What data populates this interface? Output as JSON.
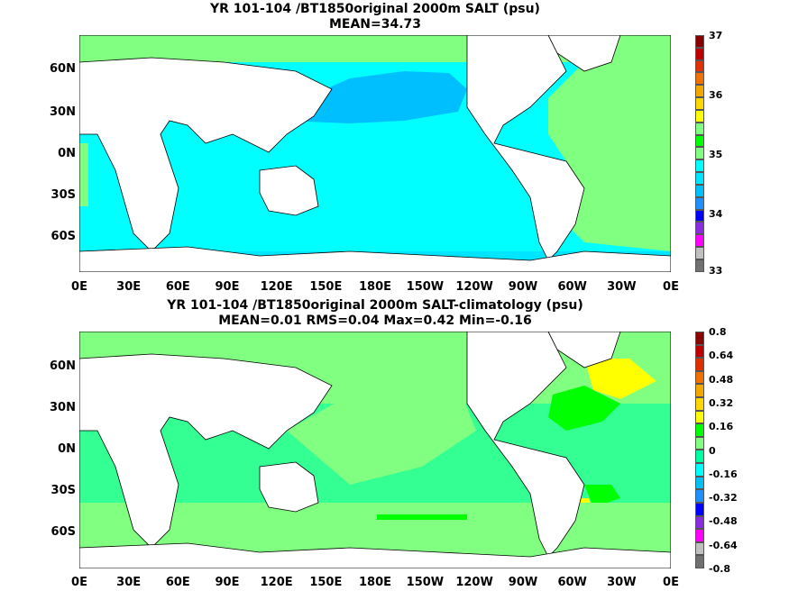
{
  "panels": [
    {
      "title": "YR 101-104 /BT1850original 2000m SALT (psu)",
      "subtitle": "MEAN=34.73",
      "colorbar_labels": [
        "37",
        "36",
        "35",
        "34",
        "33"
      ]
    },
    {
      "title": "YR 101-104 /BT1850original 2000m SALT-climatology (psu)",
      "subtitle": "MEAN=0.01   RMS=0.04   Max=0.42   Min=-0.16",
      "colorbar_labels": [
        "0.8",
        "0.64",
        "0.48",
        "0.32",
        "0.16",
        "0",
        "-0.16",
        "-0.32",
        "-0.48",
        "-0.64",
        "-0.8"
      ]
    }
  ],
  "lat_labels": [
    "60N",
    "30N",
    "0N",
    "30S",
    "60S"
  ],
  "lon_labels": [
    "0E",
    "30E",
    "60E",
    "90E",
    "120E",
    "150E",
    "180E",
    "150W",
    "120W",
    "90W",
    "60W",
    "30W",
    "0E"
  ],
  "colors": {
    "scale1": [
      "#8b0000",
      "#c00000",
      "#e03000",
      "#f07000",
      "#f5a800",
      "#ffd700",
      "#ffff00",
      "#80ff80",
      "#00ff00",
      "#80ff80",
      "#00ffff",
      "#00e5ff",
      "#00bfff",
      "#1e90ff",
      "#0000ff",
      "#8a2be2",
      "#ff00ff",
      "#c0c0c0",
      "#707070"
    ],
    "scale2": [
      "#8b0000",
      "#c00000",
      "#e03000",
      "#f07000",
      "#f5a800",
      "#ffd700",
      "#ffff00",
      "#00ff00",
      "#80ff80",
      "#00ffa0",
      "#00ffff",
      "#00bfff",
      "#1e90ff",
      "#0000ff",
      "#8a2be2",
      "#ff00ff",
      "#c0c0c0",
      "#707070"
    ]
  }
}
